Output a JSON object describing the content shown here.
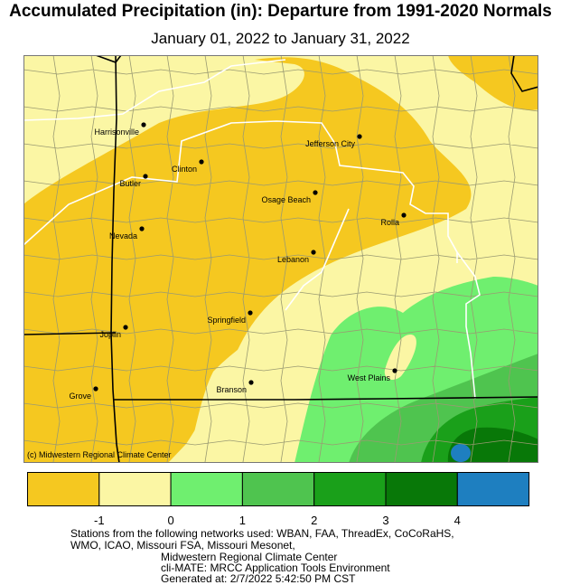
{
  "title": "Accumulated Precipitation (in): Departure from 1991-2020 Normals",
  "subtitle": "January 01, 2022 to January 31, 2022",
  "credit": "(c) Midwestern Regional Climate Center",
  "colors": {
    "below_minus1": "#f5c820",
    "minus1_to_0": "#fbf6a4",
    "zero_to_1": "#6fef6f",
    "one_to_2": "#4fc44f",
    "two_to_3": "#1aa01a",
    "three_to_4": "#087808",
    "above_4": "#1e7fc0",
    "county_line": "#9a9a72",
    "division_line": "#ffffff",
    "state_line": "#000000"
  },
  "cities": [
    {
      "name": "Harrisonville"
    },
    {
      "name": "Jefferson City"
    },
    {
      "name": "Clinton"
    },
    {
      "name": "Butler"
    },
    {
      "name": "Osage Beach"
    },
    {
      "name": "Rolla"
    },
    {
      "name": "Nevada"
    },
    {
      "name": "Lebanon"
    },
    {
      "name": "Springfield"
    },
    {
      "name": "Joplin"
    },
    {
      "name": "West Plains"
    },
    {
      "name": "Branson"
    },
    {
      "name": "Grove"
    }
  ],
  "legend": {
    "ticks": [
      "-1",
      "0",
      "1",
      "2",
      "3",
      "4"
    ],
    "swatch_colors": [
      "#f5c820",
      "#fbf6a4",
      "#6fef6f",
      "#4fc44f",
      "#1aa01a",
      "#087808",
      "#1e7fc0"
    ]
  },
  "footer": {
    "line1": "Stations from the following networks used: WBAN, FAA, ThreadEx, CoCoRaHS,",
    "line2": "WMO, ICAO, Missouri FSA, Missouri Mesonet,",
    "line3": "Midwestern Regional Climate Center",
    "line4": "cli-MATE: MRCC Application Tools Environment",
    "line5": "Generated at: 2/7/2022 5:42:50 PM CST"
  }
}
